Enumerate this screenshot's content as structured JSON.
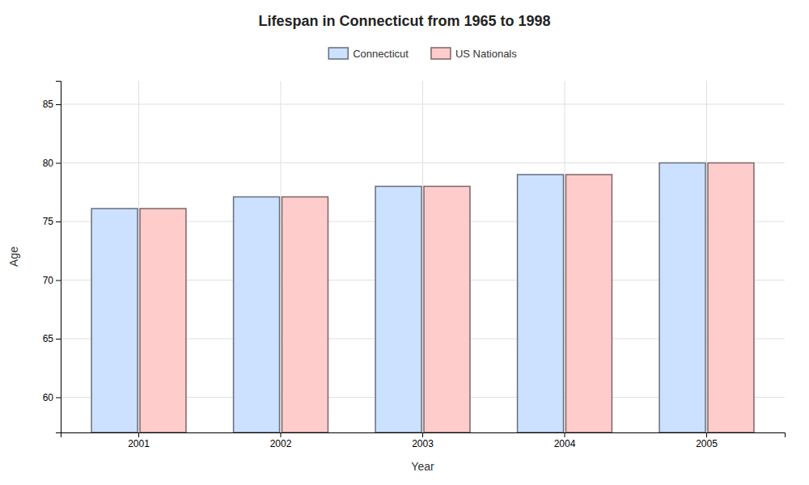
{
  "chart_data": {
    "type": "bar",
    "title": "Lifespan in Connecticut from 1965 to 1998",
    "xlabel": "Year",
    "ylabel": "Age",
    "categories": [
      "2001",
      "2002",
      "2003",
      "2004",
      "2005"
    ],
    "series": [
      {
        "name": "Connecticut",
        "color": "#cce0ff",
        "values": [
          76.1,
          77.1,
          78.0,
          79.0,
          80.0
        ]
      },
      {
        "name": "US Nationals",
        "color": "#ffcccc",
        "values": [
          76.1,
          77.1,
          78.0,
          79.0,
          80.0
        ]
      }
    ],
    "ylim": [
      57,
      87
    ],
    "yticks": [
      60,
      65,
      70,
      75,
      80,
      85
    ],
    "grid": true,
    "legend": "top"
  }
}
